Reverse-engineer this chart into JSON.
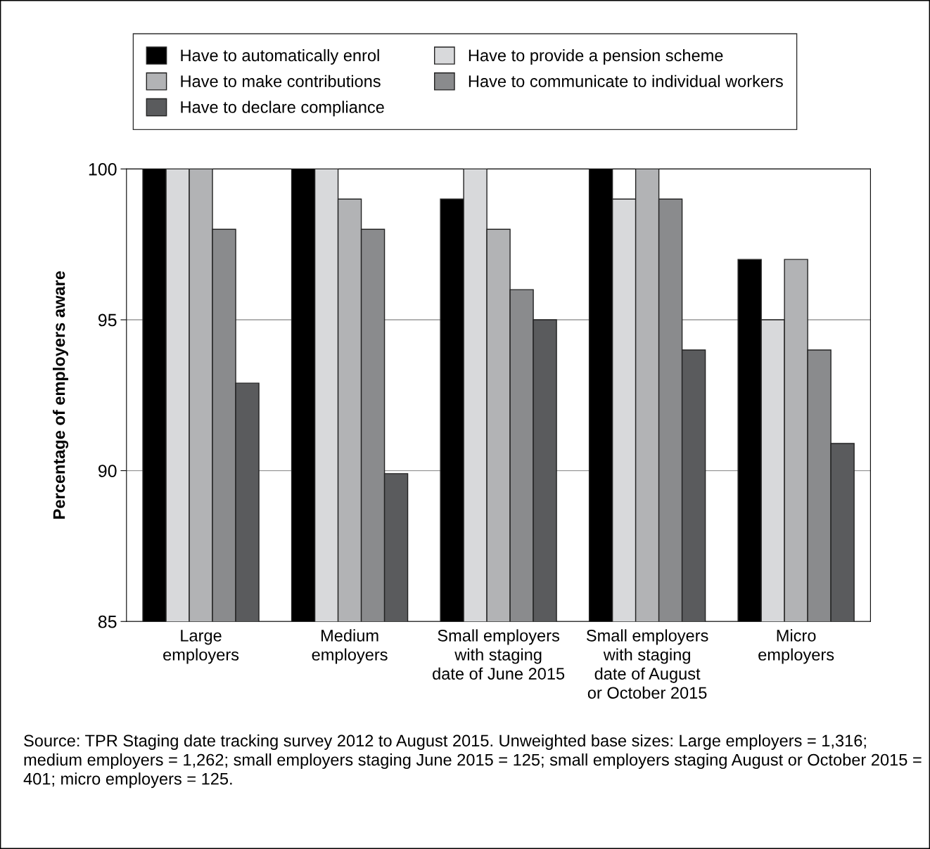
{
  "chart_data": {
    "type": "bar",
    "ylabel": "Percentage of employers aware",
    "categories": [
      "Large\nemployers",
      "Medium\nemployers",
      "Small employers\nwith staging\ndate of June 2015",
      "Small employers\nwith staging\ndate of August\nor October 2015",
      "Micro\nemployers"
    ],
    "series": [
      {
        "name": "Have to automatically enrol",
        "color": "#000000",
        "values": [
          100,
          100,
          99,
          100,
          97
        ]
      },
      {
        "name": "Have to provide a pension scheme",
        "color": "#d8d9db",
        "values": [
          100,
          100,
          100,
          99,
          95
        ]
      },
      {
        "name": "Have to make contributions",
        "color": "#b2b3b5",
        "values": [
          100,
          99,
          98,
          100,
          97
        ]
      },
      {
        "name": "Have to communicate to individual workers",
        "color": "#8a8b8d",
        "values": [
          98,
          98,
          96,
          99,
          94
        ]
      },
      {
        "name": "Have to declare compliance",
        "color": "#5a5b5d",
        "values": [
          92.9,
          89.9,
          95,
          94,
          90.9
        ]
      }
    ],
    "ylim": [
      85,
      100
    ],
    "yticks": [
      85,
      90,
      95,
      100
    ],
    "grid": "y",
    "legend": "top",
    "annotations": [
      "Source: TPR Staging date tracking survey 2012 to August 2015. Unweighted base sizes: Large employers = 1,316; medium employers = 1,262; small employers staging June 2015 = 125; small employers staging August or October 2015 = 401; micro employers = 125."
    ]
  }
}
